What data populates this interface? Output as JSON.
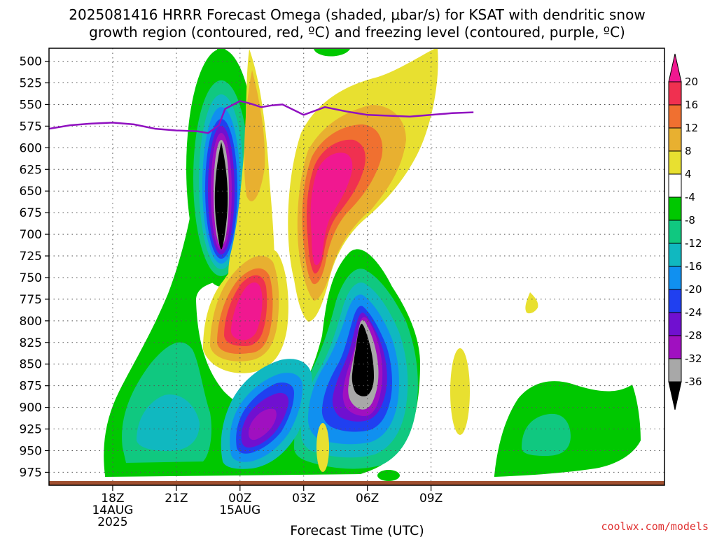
{
  "chart_data": {
    "type": "heatmap",
    "title_line1": "2025081416 HRRR Forecast Omega (shaded, μbar/s) for KSAT with dendritic snow",
    "title_line2": "growth region (contoured, red, ºC) and freezing level (contoured, purple, ºC)",
    "xlabel": "Forecast Time (UTC)",
    "ylabel": "",
    "y_ticks": [
      500,
      525,
      550,
      575,
      600,
      625,
      650,
      675,
      700,
      725,
      750,
      775,
      800,
      825,
      850,
      875,
      900,
      925,
      950,
      975
    ],
    "ylim": [
      485,
      990
    ],
    "y_inverted": true,
    "xlim": [
      15,
      44
    ],
    "x_ticks": [
      {
        "x": 18,
        "lines": [
          "18Z",
          "14AUG",
          "2025"
        ]
      },
      {
        "x": 21,
        "lines": [
          "21Z"
        ]
      },
      {
        "x": 24,
        "lines": [
          "00Z",
          "15AUG"
        ]
      },
      {
        "x": 27,
        "lines": [
          "03Z"
        ]
      },
      {
        "x": 30,
        "lines": [
          "06Z"
        ]
      },
      {
        "x": 33,
        "lines": [
          "09Z"
        ]
      }
    ],
    "colorbar": {
      "labels": [
        "20",
        "16",
        "12",
        "8",
        "4",
        "-4",
        "-8",
        "-12",
        "-16",
        "-20",
        "-24",
        "-28",
        "-32",
        "-36"
      ],
      "bins": [
        {
          "lo": 16,
          "hi": 20,
          "color": "#f03050"
        },
        {
          "lo": 12,
          "hi": 16,
          "color": "#f07030"
        },
        {
          "lo": 8,
          "hi": 12,
          "color": "#e8b030"
        },
        {
          "lo": 4,
          "hi": 8,
          "color": "#e8e030"
        },
        {
          "lo": -4,
          "hi": 4,
          "color": "#ffffff"
        },
        {
          "lo": -8,
          "hi": -4,
          "color": "#00c800"
        },
        {
          "lo": -12,
          "hi": -8,
          "color": "#10c880"
        },
        {
          "lo": -16,
          "hi": -12,
          "color": "#10b8c0"
        },
        {
          "lo": -20,
          "hi": -16,
          "color": "#1090f0"
        },
        {
          "lo": -24,
          "hi": -20,
          "color": "#2040f0"
        },
        {
          "lo": -28,
          "hi": -24,
          "color": "#7010d0"
        },
        {
          "lo": -32,
          "hi": -28,
          "color": "#a010c0"
        },
        {
          "lo": -36,
          "hi": -32,
          "color": "#a8a8a8"
        }
      ],
      "top_arrow_color": "#f01890",
      "bottom_arrow_color": "#000000"
    },
    "freezing_level": {
      "color": "#9010c0",
      "x": [
        15,
        16,
        17,
        18,
        19,
        20,
        21,
        22,
        22.5,
        23,
        23.3,
        24,
        24.5,
        25,
        25.5,
        26,
        27,
        28,
        29,
        30,
        31,
        32,
        33,
        34,
        35
      ],
      "y": [
        578,
        574,
        572,
        571,
        573,
        578,
        580,
        581,
        583,
        574,
        555,
        546,
        549,
        553,
        551,
        550,
        562,
        553,
        558,
        562,
        563,
        564,
        562,
        560,
        559
      ]
    },
    "omega_cells": [
      {
        "x": 21.0,
        "y": 620,
        "rx": 1.2,
        "ry": 170,
        "value": -36
      },
      {
        "x": 22.2,
        "y": 560,
        "rx": 0.45,
        "ry": 90,
        "value": 12
      },
      {
        "x": 22.8,
        "y": 730,
        "rx": 1.0,
        "ry": 90,
        "value": 20
      },
      {
        "x": 24.0,
        "y": 650,
        "rx": 1.4,
        "ry": 140,
        "value": 20
      },
      {
        "x": 25.5,
        "y": 560,
        "rx": 2.5,
        "ry": 100,
        "value": 8
      },
      {
        "x": 24.5,
        "y": 800,
        "rx": 2.5,
        "ry": 200,
        "value": -36
      },
      {
        "x": 22.8,
        "y": 910,
        "rx": 2.0,
        "ry": 110,
        "value": -28
      },
      {
        "x": 18.5,
        "y": 905,
        "rx": 2.5,
        "ry": 80,
        "value": -12
      },
      {
        "x": 28.7,
        "y": 880,
        "rx": 0.3,
        "ry": 60,
        "value": 4
      },
      {
        "x": 30.0,
        "y": 745,
        "rx": 0.15,
        "ry": 12,
        "value": 4
      },
      {
        "x": 24.0,
        "y": 940,
        "rx": 0.2,
        "ry": 30,
        "value": 4
      },
      {
        "x": 31.2,
        "y": 915,
        "rx": 1.9,
        "ry": 75,
        "value": -12
      },
      {
        "x": 24.0,
        "y": 485,
        "rx": 0.5,
        "ry": 12,
        "value": -4
      }
    ],
    "ground_color": "#a05030"
  },
  "footer": {
    "credit": "coolwx.com/models"
  }
}
